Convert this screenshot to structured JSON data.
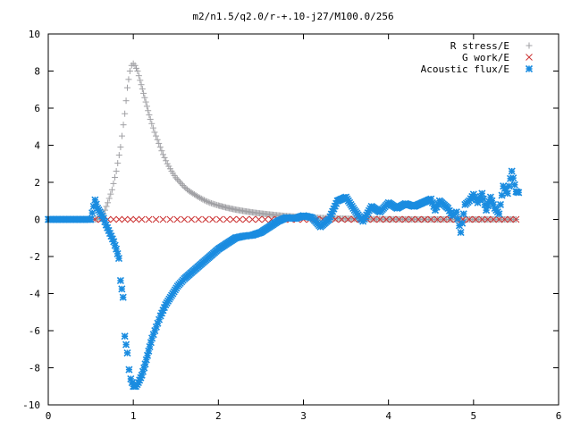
{
  "chart_data": {
    "type": "scatter",
    "title": "m2/n1.5/q2.0/r-+.10-j27/M100.0/256",
    "xlabel": "",
    "ylabel": "",
    "xlim": [
      0,
      6
    ],
    "ylim": [
      -10,
      10
    ],
    "x_ticks": [
      "0",
      "1",
      "2",
      "3",
      "4",
      "5",
      "6"
    ],
    "y_ticks": [
      "10",
      "8",
      "6",
      "4",
      "2",
      "0",
      "-2",
      "-4",
      "-6",
      "-8",
      "-10"
    ],
    "grid": false,
    "legend_position": "top-right",
    "series": [
      {
        "name": "R stress/E",
        "marker": "plus",
        "color": "#a0a0a4",
        "points": [
          [
            0.55,
            0.0
          ],
          [
            0.6,
            0.05
          ],
          [
            0.65,
            0.3
          ],
          [
            0.7,
            0.9
          ],
          [
            0.75,
            1.6
          ],
          [
            0.8,
            2.6
          ],
          [
            0.85,
            3.9
          ],
          [
            0.9,
            5.7
          ],
          [
            0.93,
            7.1
          ],
          [
            0.96,
            8.0
          ],
          [
            0.98,
            8.3
          ],
          [
            1.0,
            8.4
          ],
          [
            1.02,
            8.3
          ],
          [
            1.05,
            8.0
          ],
          [
            1.08,
            7.5
          ],
          [
            1.12,
            6.8
          ],
          [
            1.16,
            6.1
          ],
          [
            1.2,
            5.4
          ],
          [
            1.25,
            4.7
          ],
          [
            1.3,
            4.1
          ],
          [
            1.35,
            3.5
          ],
          [
            1.4,
            3.0
          ],
          [
            1.45,
            2.6
          ],
          [
            1.5,
            2.25
          ],
          [
            1.55,
            2.0
          ],
          [
            1.6,
            1.75
          ],
          [
            1.65,
            1.55
          ],
          [
            1.7,
            1.4
          ],
          [
            1.75,
            1.25
          ],
          [
            1.8,
            1.12
          ],
          [
            1.85,
            1.0
          ],
          [
            1.9,
            0.9
          ],
          [
            1.95,
            0.82
          ],
          [
            2.0,
            0.75
          ],
          [
            2.1,
            0.63
          ],
          [
            2.2,
            0.53
          ],
          [
            2.3,
            0.45
          ],
          [
            2.4,
            0.38
          ],
          [
            2.5,
            0.32
          ],
          [
            2.6,
            0.27
          ],
          [
            2.7,
            0.22
          ],
          [
            2.8,
            0.18
          ],
          [
            2.9,
            0.15
          ],
          [
            3.0,
            0.12
          ],
          [
            3.2,
            0.08
          ],
          [
            3.4,
            0.05
          ],
          [
            3.6,
            0.03
          ],
          [
            3.8,
            0.02
          ],
          [
            4.0,
            0.01
          ],
          [
            4.5,
            0.0
          ],
          [
            5.0,
            0.0
          ],
          [
            5.5,
            0.0
          ]
        ]
      },
      {
        "name": "G work/E",
        "marker": "cross",
        "color": "#cc3333",
        "points": [
          [
            0.55,
            0.0
          ],
          [
            0.7,
            0.0
          ],
          [
            0.9,
            0.0
          ],
          [
            1.1,
            0.0
          ],
          [
            1.35,
            0.0
          ],
          [
            1.6,
            0.0
          ],
          [
            1.85,
            0.0
          ],
          [
            2.1,
            0.0
          ],
          [
            2.4,
            0.0
          ],
          [
            2.7,
            0.0
          ],
          [
            3.0,
            0.0
          ],
          [
            3.3,
            0.0
          ],
          [
            3.6,
            0.0
          ],
          [
            3.9,
            0.0
          ],
          [
            4.2,
            0.0
          ],
          [
            4.5,
            0.0
          ],
          [
            4.8,
            0.0
          ],
          [
            5.1,
            0.0
          ],
          [
            5.3,
            0.0
          ],
          [
            5.5,
            0.0
          ]
        ]
      },
      {
        "name": "Acoustic flux/E",
        "marker": "star",
        "color": "#1a8ce0",
        "points": [
          [
            0.0,
            0.0
          ],
          [
            0.1,
            0.0
          ],
          [
            0.2,
            0.0
          ],
          [
            0.3,
            0.0
          ],
          [
            0.4,
            0.0
          ],
          [
            0.5,
            0.0
          ],
          [
            0.55,
            1.05
          ],
          [
            0.58,
            0.6
          ],
          [
            0.62,
            0.3
          ],
          [
            0.65,
            0.05
          ],
          [
            0.68,
            -0.3
          ],
          [
            0.71,
            -0.6
          ],
          [
            0.74,
            -0.9
          ],
          [
            0.77,
            -1.2
          ],
          [
            0.8,
            -1.6
          ],
          [
            0.83,
            -2.1
          ],
          [
            0.85,
            -3.3
          ],
          [
            0.88,
            -4.2
          ],
          [
            0.9,
            -6.3
          ],
          [
            0.93,
            -7.2
          ],
          [
            0.95,
            -8.1
          ],
          [
            0.97,
            -8.6
          ],
          [
            1.0,
            -9.0
          ],
          [
            1.03,
            -9.0
          ],
          [
            1.06,
            -8.8
          ],
          [
            1.1,
            -8.4
          ],
          [
            1.14,
            -7.8
          ],
          [
            1.18,
            -7.1
          ],
          [
            1.22,
            -6.4
          ],
          [
            1.27,
            -5.8
          ],
          [
            1.32,
            -5.2
          ],
          [
            1.38,
            -4.6
          ],
          [
            1.45,
            -4.1
          ],
          [
            1.52,
            -3.6
          ],
          [
            1.6,
            -3.2
          ],
          [
            1.7,
            -2.8
          ],
          [
            1.8,
            -2.4
          ],
          [
            1.9,
            -2.0
          ],
          [
            2.0,
            -1.6
          ],
          [
            2.1,
            -1.3
          ],
          [
            2.2,
            -1.0
          ],
          [
            2.3,
            -0.9
          ],
          [
            2.4,
            -0.85
          ],
          [
            2.5,
            -0.7
          ],
          [
            2.6,
            -0.4
          ],
          [
            2.7,
            -0.1
          ],
          [
            2.8,
            0.1
          ],
          [
            2.9,
            0.05
          ],
          [
            3.0,
            0.2
          ],
          [
            3.1,
            0.1
          ],
          [
            3.2,
            -0.4
          ],
          [
            3.3,
            0.0
          ],
          [
            3.4,
            1.0
          ],
          [
            3.5,
            1.2
          ],
          [
            3.6,
            0.5
          ],
          [
            3.7,
            -0.1
          ],
          [
            3.8,
            0.7
          ],
          [
            3.9,
            0.4
          ],
          [
            4.0,
            0.9
          ],
          [
            4.1,
            0.6
          ],
          [
            4.2,
            0.85
          ],
          [
            4.3,
            0.7
          ],
          [
            4.4,
            0.9
          ],
          [
            4.5,
            1.1
          ],
          [
            4.55,
            0.5
          ],
          [
            4.6,
            1.0
          ],
          [
            4.7,
            0.6
          ],
          [
            4.75,
            0.2
          ],
          [
            4.8,
            0.4
          ],
          [
            4.85,
            -0.7
          ],
          [
            4.9,
            0.8
          ],
          [
            4.95,
            1.0
          ],
          [
            5.0,
            1.35
          ],
          [
            5.05,
            0.9
          ],
          [
            5.1,
            1.4
          ],
          [
            5.15,
            0.5
          ],
          [
            5.2,
            1.2
          ],
          [
            5.25,
            0.6
          ],
          [
            5.3,
            0.3
          ],
          [
            5.35,
            1.8
          ],
          [
            5.4,
            1.4
          ],
          [
            5.45,
            2.6
          ],
          [
            5.5,
            1.5
          ],
          [
            5.53,
            1.45
          ]
        ]
      }
    ]
  }
}
